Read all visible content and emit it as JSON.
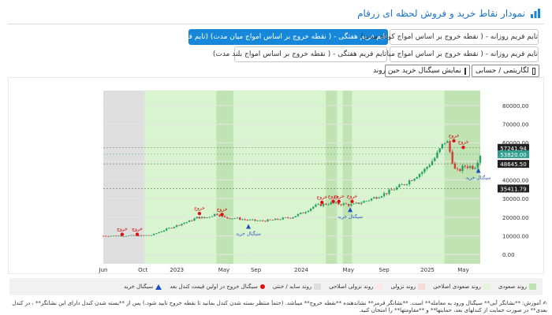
{
  "header": {
    "title": "نمودار نقاط خرید و فروش لحظه ای زرقام"
  },
  "timeframes": {
    "weekly_best": "تایم فریم هفتگی - ( نقطه خروج بر اساس امواج میان مدت) (تایم فریم بهینه)",
    "daily_short": "تایم فریم روزانه - ( نقطه خروج بر اساس امواج کوتاه مدت)",
    "daily_mid": "تایم فریم روزانه - ( نقطه خروج بر اساس امواج میان مدت)",
    "weekly_long": "تایم فریم هفتگی - ( نقطه خروج بر اساس امواج بلند مدت)"
  },
  "controls": {
    "log_toggle": "لگاریتمی / حسابی",
    "show_signal": "نمایش سیگنال خرید حین روند"
  },
  "chart_data": {
    "type": "candlestick",
    "y_ticks": [
      "80000.00",
      "70000.00",
      "60000.00",
      "50000.00",
      "40000.00",
      "30000.00",
      "20000.00",
      "10000.00",
      "0.00"
    ],
    "ylim": [
      -5000,
      88000
    ],
    "x_ticks": [
      "Jun",
      "Oct",
      "2023",
      "May",
      "Sep",
      "2024",
      "May",
      "Sep",
      "2025",
      "May"
    ],
    "price_labels": [
      {
        "value": 57241.94,
        "text": "57241.94",
        "color": "#222222"
      },
      {
        "value": 53820.0,
        "text": "53820.00",
        "color": "#2e9e8e"
      },
      {
        "value": 48645.5,
        "text": "48645.50",
        "color": "#222222"
      },
      {
        "value": 35411.79,
        "text": "35411.79",
        "color": "#222222"
      }
    ],
    "regions": [
      {
        "kind": "sideways",
        "from": 0.0,
        "to": 0.11
      },
      {
        "kind": "uptrend",
        "from": 0.11,
        "to": 0.385
      },
      {
        "kind": "uptrend_strong",
        "from": 0.3,
        "to": 0.345
      },
      {
        "kind": "uptrend",
        "from": 0.385,
        "to": 0.39
      },
      {
        "kind": "uptrend",
        "from": 0.39,
        "to": 1.0
      },
      {
        "kind": "uptrend_strong",
        "from": 0.59,
        "to": 0.62
      },
      {
        "kind": "uptrend_strong",
        "from": 0.635,
        "to": 0.66
      },
      {
        "kind": "uptrend_strong",
        "from": 0.905,
        "to": 1.0
      }
    ],
    "exit_signals": [
      {
        "t": 0.05,
        "price": 10800,
        "label": "خروج"
      },
      {
        "t": 0.09,
        "price": 10800,
        "label": "خروج"
      },
      {
        "t": 0.255,
        "price": 22000,
        "label": "خروج"
      },
      {
        "t": 0.315,
        "price": 21500,
        "label": "خروج"
      },
      {
        "t": 0.58,
        "price": 28000,
        "label": "خروج"
      },
      {
        "t": 0.61,
        "price": 28500,
        "label": "خروج"
      },
      {
        "t": 0.625,
        "price": 28500,
        "label": "خروج"
      },
      {
        "t": 0.66,
        "price": 28500,
        "label": "خروج"
      },
      {
        "t": 0.93,
        "price": 61000,
        "label": "خروج"
      },
      {
        "t": 0.955,
        "price": 57500,
        "label": "خروج"
      }
    ],
    "buy_signals": [
      {
        "t": 0.385,
        "price": 15500,
        "label": "سیگنال خرید"
      },
      {
        "t": 0.655,
        "price": 24500,
        "label": "سیگنال خرید"
      },
      {
        "t": 0.995,
        "price": 45500,
        "label": "سیگنال خرید"
      }
    ],
    "close_path": [
      [
        0.0,
        10000
      ],
      [
        0.1,
        10100
      ],
      [
        0.13,
        10500
      ],
      [
        0.16,
        13000
      ],
      [
        0.2,
        16000
      ],
      [
        0.23,
        18000
      ],
      [
        0.25,
        20000
      ],
      [
        0.27,
        19500
      ],
      [
        0.3,
        22000
      ],
      [
        0.32,
        19800
      ],
      [
        0.35,
        19500
      ],
      [
        0.38,
        18500
      ],
      [
        0.42,
        18000
      ],
      [
        0.45,
        18500
      ],
      [
        0.5,
        20000
      ],
      [
        0.53,
        22500
      ],
      [
        0.56,
        26000
      ],
      [
        0.6,
        27500
      ],
      [
        0.64,
        27000
      ],
      [
        0.66,
        26500
      ],
      [
        0.7,
        29000
      ],
      [
        0.75,
        33000
      ],
      [
        0.8,
        38000
      ],
      [
        0.85,
        45000
      ],
      [
        0.88,
        52000
      ],
      [
        0.91,
        62000
      ],
      [
        0.935,
        44000
      ],
      [
        0.96,
        47500
      ],
      [
        0.985,
        47000
      ],
      [
        1.0,
        53800
      ]
    ]
  },
  "legend": {
    "uptrend": "روند صعودی",
    "uptrend_correction": "روند صعودی اصلاحی",
    "downtrend": "روند نزولی",
    "downtrend_correction": "روند نزولی اصلاحی",
    "sideways": "روند ساید / خنثی",
    "exit_signal": "سیگنال خروج در اولین قیمت کندل بعد",
    "buy_signal": "سیگنال خرید"
  },
  "colors": {
    "uptrend": "#d9f5cf",
    "uptrend_strong": "#bfe3b2",
    "uptrend_correction": "#e6f4de",
    "downtrend": "#f7d9d9",
    "downtrend_correction": "#fbe9e9",
    "sideways": "#dedede",
    "accent": "#1687d9"
  },
  "guide_text": "آموزش: **نشانگر آبی** سیگنال ورود به معامله** است. **نشانگر قرمز** نشاندهنده **نقطه خروج** میباشد. (حتماً منتظر بسته شدن کندل بمانید تا نقطه خروج تأیید شود.) پس از **بسته شدن کندل دارای این نشانگر** ، در کندل بعدی** در صورت حمایت از کندلهای بعد، حمایتها** و **مقاومتها** را امتحان کنید."
}
